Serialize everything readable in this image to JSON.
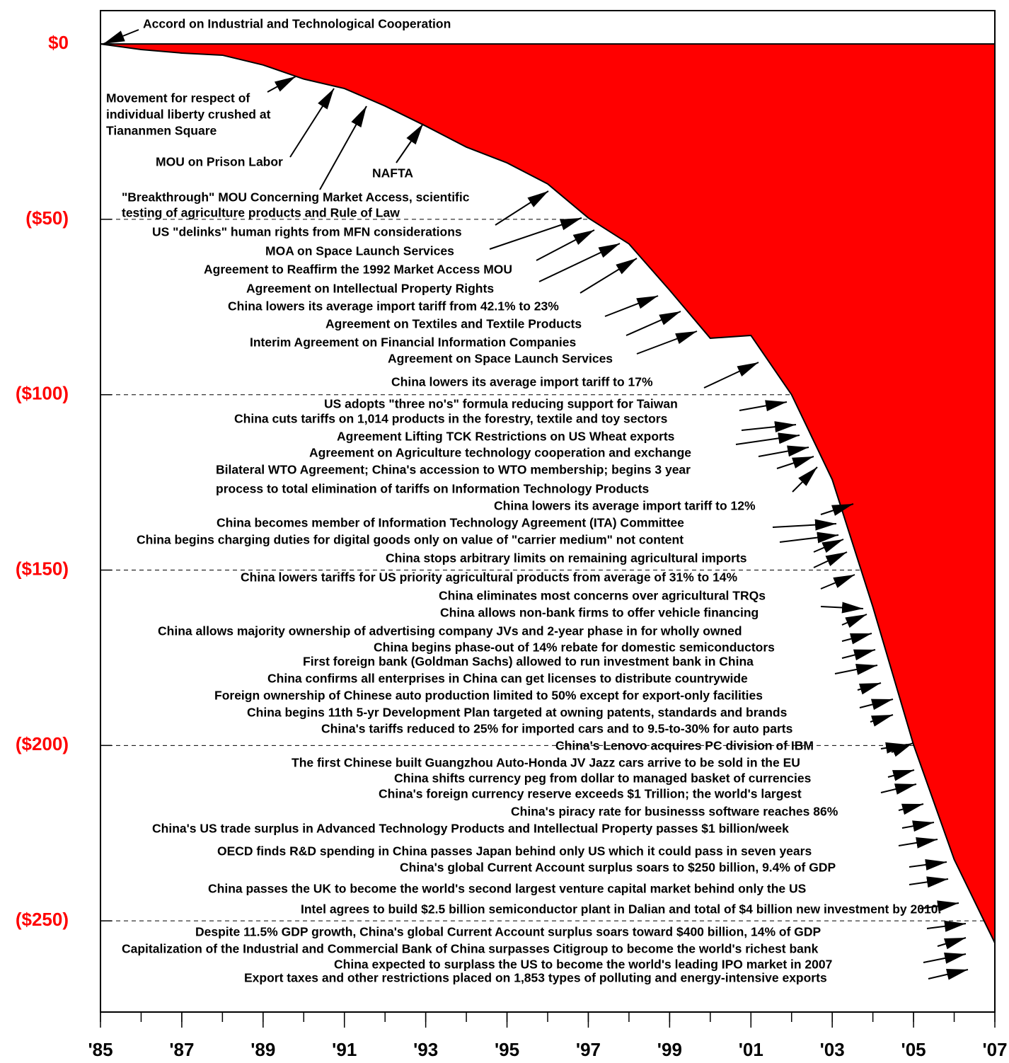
{
  "chart_data": {
    "type": "area",
    "x": [
      1985,
      1986,
      1987,
      1988,
      1989,
      1990,
      1991,
      1992,
      1993,
      1994,
      1995,
      1996,
      1997,
      1998,
      1999,
      2000,
      2001,
      2002,
      2003,
      2004,
      2005,
      2006,
      2007
    ],
    "values": [
      0,
      -1.6,
      -2.6,
      -3.2,
      -6,
      -10,
      -12.7,
      -17.7,
      -23.4,
      -29.4,
      -33.9,
      -39.9,
      -49.6,
      -57,
      -70.2,
      -83.9,
      -83.1,
      -100,
      -124.2,
      -160.5,
      -199.8,
      -232.5,
      -256.3
    ],
    "color": "#ff0000",
    "xlim": [
      1985,
      2007
    ],
    "xticks": [
      {
        "value": 1985,
        "label": "'85"
      },
      {
        "value": 1987,
        "label": "'87"
      },
      {
        "value": 1989,
        "label": "'89"
      },
      {
        "value": 1991,
        "label": "'91"
      },
      {
        "value": 1993,
        "label": "'93"
      },
      {
        "value": 1995,
        "label": "'95"
      },
      {
        "value": 1997,
        "label": "'97"
      },
      {
        "value": 1999,
        "label": "'99"
      },
      {
        "value": 2001,
        "label": "'01"
      },
      {
        "value": 2003,
        "label": "'03"
      },
      {
        "value": 2005,
        "label": "'05"
      },
      {
        "value": 2007,
        "label": "'07"
      }
    ],
    "ylim": [
      -276,
      9.5
    ],
    "yticks": [
      {
        "value": 0,
        "label": "$0"
      },
      {
        "value": -50,
        "label": "($50)"
      },
      {
        "value": -100,
        "label": "($100)"
      },
      {
        "value": -150,
        "label": "($150)"
      },
      {
        "value": -200,
        "label": "($200)"
      },
      {
        "value": -250,
        "label": "($250)"
      }
    ],
    "grid": true,
    "annotations": [
      "Accord on Industrial and Technological Cooperation",
      "Movement for respect of",
      "individual liberty crushed at",
      "Tiananmen Square",
      "MOU on Prison Labor",
      "NAFTA",
      "\"Breakthrough\" MOU Concerning Market Access, scientific",
      "testing of agriculture products and Rule of Law",
      "US \"delinks\" human rights from MFN considerations",
      "MOA on Space Launch Services",
      "Agreement to Reaffirm the 1992 Market Access MOU",
      "Agreement on Intellectual Property Rights",
      "China lowers its average import tariff from 42.1% to 23%",
      "Agreement on Textiles and Textile Products",
      "Interim Agreement on Financial Information Companies",
      "Agreement on Space Launch Services",
      "China lowers its average import tariff to 17%",
      "US adopts \"three no's\" formula reducing support for Taiwan",
      "China cuts tariffs on 1,014 products in the forestry, textile and toy sectors",
      "Agreement Lifting TCK Restrictions on US Wheat exports",
      "Agreement on Agriculture technology cooperation and exchange",
      "Bilateral WTO Agreement; China's accession to WTO membership; begins 3 year",
      "process to total elimination of tariffs on Information Technology Products",
      "China lowers its average import tariff to 12%",
      "China becomes member of Information Technology Agreement (ITA) Committee",
      "China begins charging duties for digital goods only on value of \"carrier medium\" not content",
      "China stops arbitrary limits on remaining agricultural imports",
      "China lowers tariffs for US priority agricultural products from average of 31% to 14%",
      "China eliminates most concerns over agricultural TRQs",
      "China allows non-bank firms to offer vehicle financing",
      "China allows majority ownership of advertising company JVs and 2-year phase in for wholly owned",
      "China begins phase-out of 14% rebate for domestic semiconductors",
      "First foreign bank (Goldman Sachs) allowed to run investment bank in China",
      "China confirms all enterprises in China can get licenses to distribute countrywide",
      "Foreign ownership of Chinese auto production limited to 50% except for export-only facilities",
      "China begins 11th 5-yr Development Plan targeted at owning patents, standards and brands",
      "China's tariffs reduced to 25% for imported cars and to 9.5-to-30% for auto parts",
      "China's Lenovo acquires PC division of IBM",
      "The first Chinese built Guangzhou Auto-Honda JV Jazz cars arrive to be sold in the EU",
      "China shifts currency peg from dollar to managed basket of currencies",
      "China's foreign currency reserve exceeds $1 Trillion; the world's largest",
      "China's piracy rate for businesss software reaches 86%",
      "China's US trade surplus in Advanced Technology Products and Intellectual Property passes $1 billion/week",
      "OECD finds R&D spending in China passes Japan behind only US which it could pass in seven years",
      "China's global Current Account surplus soars to $250 billion, 9.4% of GDP",
      "China passes the UK to become the world's second largest venture capital market behind only the US",
      "Intel agrees to build $2.5 billion semiconductor plant in Dalian and total of $4 billion new investment by 2010.",
      "Despite 11.5% GDP growth, China's global Current Account surplus soars toward $400 billion, 14% of GDP",
      "Capitalization of the Industrial and Commercial Bank of China surpasses Citigroup to become the world's richest bank",
      "China expected to surplass the US to become the world's leading IPO market in 2007",
      "Export taxes and other restrictions placed on 1,853 types of polluting and energy-intensive exports"
    ]
  }
}
